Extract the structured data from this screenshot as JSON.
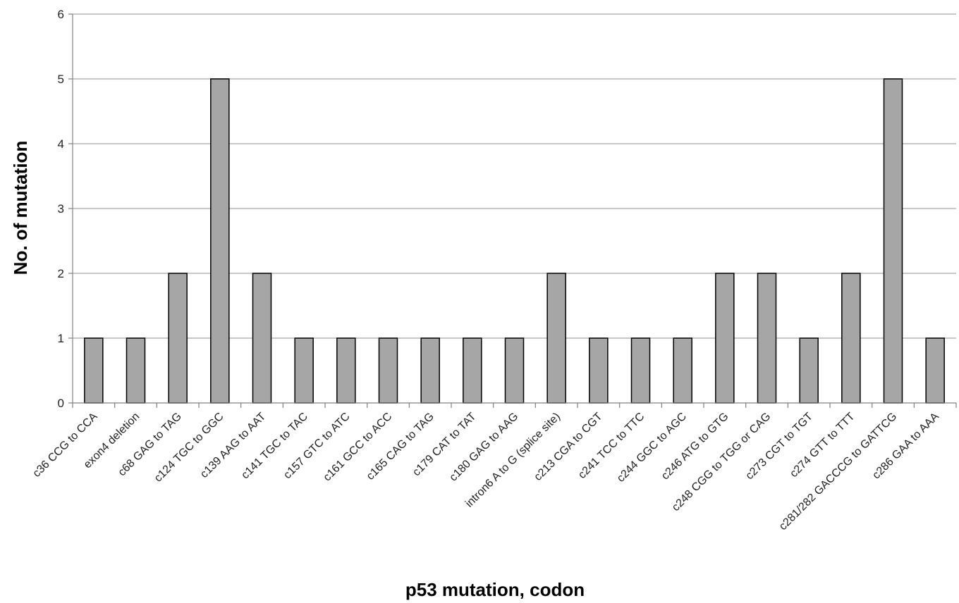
{
  "chart_data": {
    "type": "bar",
    "title": "",
    "xlabel": "p53 mutation, codon",
    "ylabel": "No. of mutation",
    "ylim": [
      0,
      6
    ],
    "yticks": [
      0,
      1,
      2,
      3,
      4,
      5,
      6
    ],
    "grid": true,
    "categories": [
      "c36 CCG to CCA",
      "exon4 deletion",
      "c68 GAG to TAG",
      "c124 TGC to GGC",
      "c139 AAG to AAT",
      "c141 TGC to TAC",
      "c157 GTC to ATC",
      "c161 GCC to ACC",
      "c165 CAG to TAG",
      "c179 CAT to TAT",
      "c180 GAG to AAG",
      "intron6 A to G (splice site)",
      "c213 CGA to CGT",
      "c241 TCC to TTC",
      "c244 GGC to AGC",
      "c246 ATG to GTG",
      "c248 CGG to TGG or CAG",
      "c273 CGT to TGT",
      "c274 GTT to TTT",
      "c281/282 GACCCG to GATTCG",
      "c286 GAA to AAA"
    ],
    "values": [
      1,
      1,
      2,
      5,
      2,
      1,
      1,
      1,
      1,
      1,
      1,
      2,
      1,
      1,
      1,
      2,
      2,
      1,
      2,
      5,
      1
    ],
    "colors": {
      "bar": "#a6a6a6",
      "bar_edge": "#000000",
      "grid": "#a8a8a8",
      "axis": "#808080"
    }
  }
}
